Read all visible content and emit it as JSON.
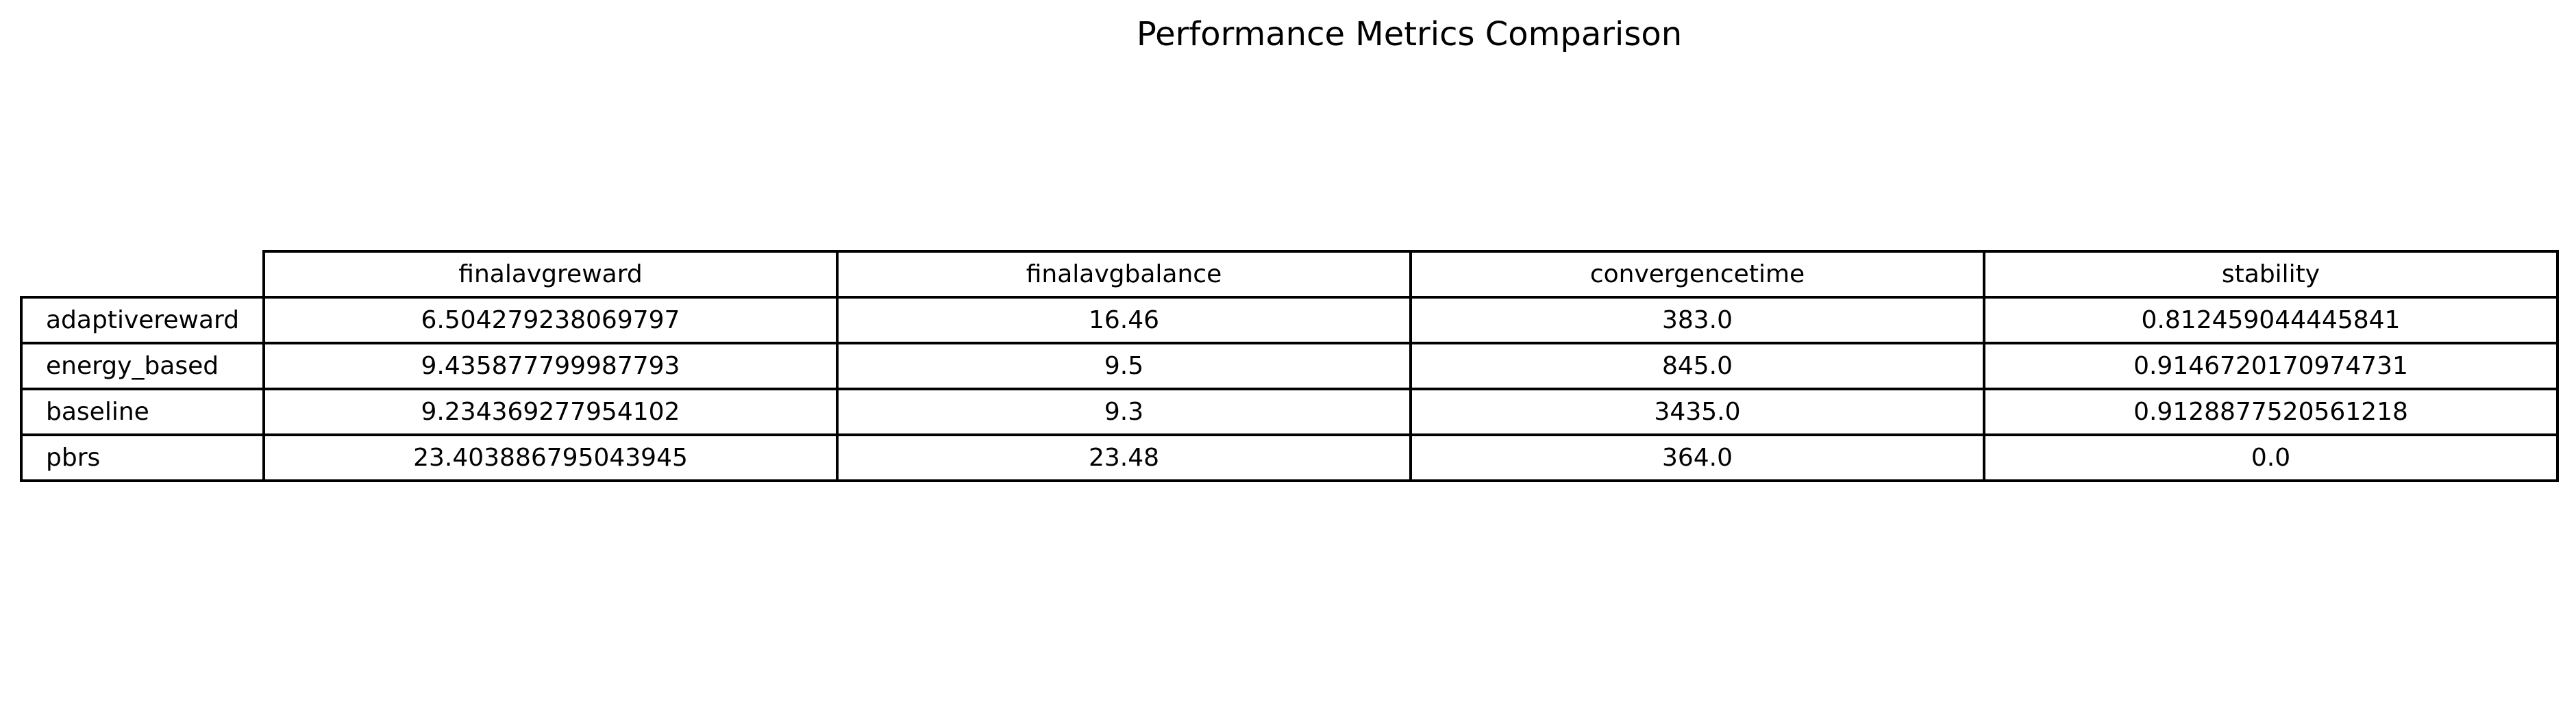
{
  "title": "Performance Metrics Comparison",
  "chart_data": {
    "type": "table",
    "title": "Performance Metrics Comparison",
    "columns": [
      "finalavgreward",
      "finalavgbalance",
      "convergencetime",
      "stability"
    ],
    "rows": [
      {
        "label": "adaptivereward",
        "values": [
          "6.504279238069797",
          "16.46",
          "383.0",
          "0.812459044445841"
        ]
      },
      {
        "label": "energy_based",
        "values": [
          "9.435877799987793",
          "9.5",
          "845.0",
          "0.9146720170974731"
        ]
      },
      {
        "label": "baseline",
        "values": [
          "9.234369277954102",
          "9.3",
          "3435.0",
          "0.9128877520561218"
        ]
      },
      {
        "label": "pbrs",
        "values": [
          "23.403886795043945",
          "23.48",
          "364.0",
          "0.0"
        ]
      }
    ]
  }
}
